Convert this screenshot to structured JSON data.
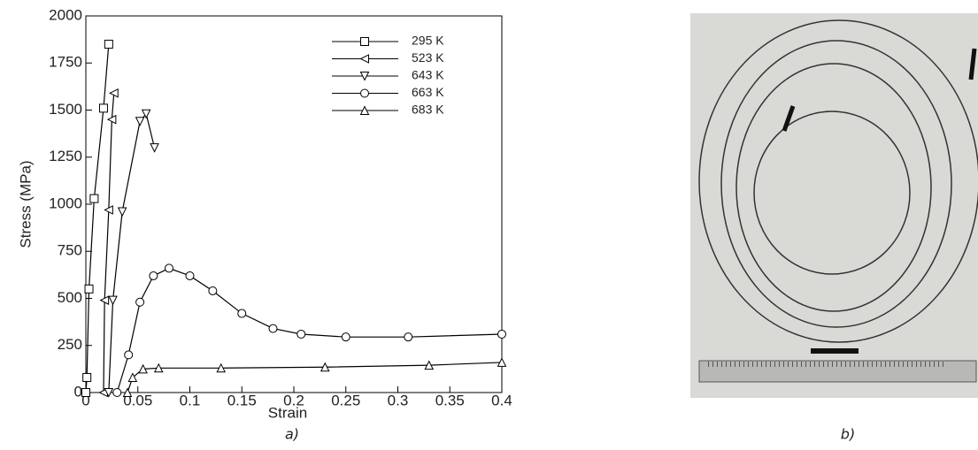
{
  "chart_data": {
    "type": "line",
    "caption": "a)",
    "x_label": "Strain",
    "y_label": "Stress (MPa)",
    "xlim": [
      0,
      0.4
    ],
    "ylim": [
      0,
      2000
    ],
    "xticks": [
      0,
      0.05,
      0.1,
      0.15,
      0.2,
      0.25,
      0.3,
      0.35,
      0.4
    ],
    "yticks": [
      0,
      250,
      500,
      750,
      1000,
      1250,
      1500,
      1750,
      2000
    ],
    "legend": "upper right",
    "color": "#000000",
    "series": [
      {
        "name": "295 K",
        "marker": "square",
        "x": [
          0,
          0.001,
          0.003,
          0.008,
          0.017,
          0.022
        ],
        "values": [
          0,
          80,
          550,
          1030,
          1510,
          1850
        ]
      },
      {
        "name": "523 K",
        "marker": "triangle-left",
        "x": [
          0.017,
          0.018,
          0.022,
          0.025,
          0.027
        ],
        "values": [
          0,
          490,
          970,
          1450,
          1590
        ]
      },
      {
        "name": "643 K",
        "marker": "triangle-down",
        "x": [
          0.022,
          0.026,
          0.035,
          0.052,
          0.058,
          0.066
        ],
        "values": [
          0,
          490,
          960,
          1440,
          1480,
          1300
        ]
      },
      {
        "name": "663 K",
        "marker": "circle",
        "x": [
          0.03,
          0.041,
          0.052,
          0.065,
          0.08,
          0.1,
          0.122,
          0.15,
          0.18,
          0.207,
          0.25,
          0.31,
          0.4
        ],
        "values": [
          0,
          200,
          480,
          620,
          660,
          620,
          540,
          420,
          340,
          310,
          295,
          295,
          310
        ]
      },
      {
        "name": "683 K",
        "marker": "triangle-up",
        "x": [
          0.04,
          0.045,
          0.055,
          0.07,
          0.13,
          0.23,
          0.33,
          0.4
        ],
        "values": [
          0,
          80,
          125,
          130,
          130,
          135,
          145,
          160
        ]
      }
    ]
  },
  "photo": {
    "caption": "b)"
  }
}
